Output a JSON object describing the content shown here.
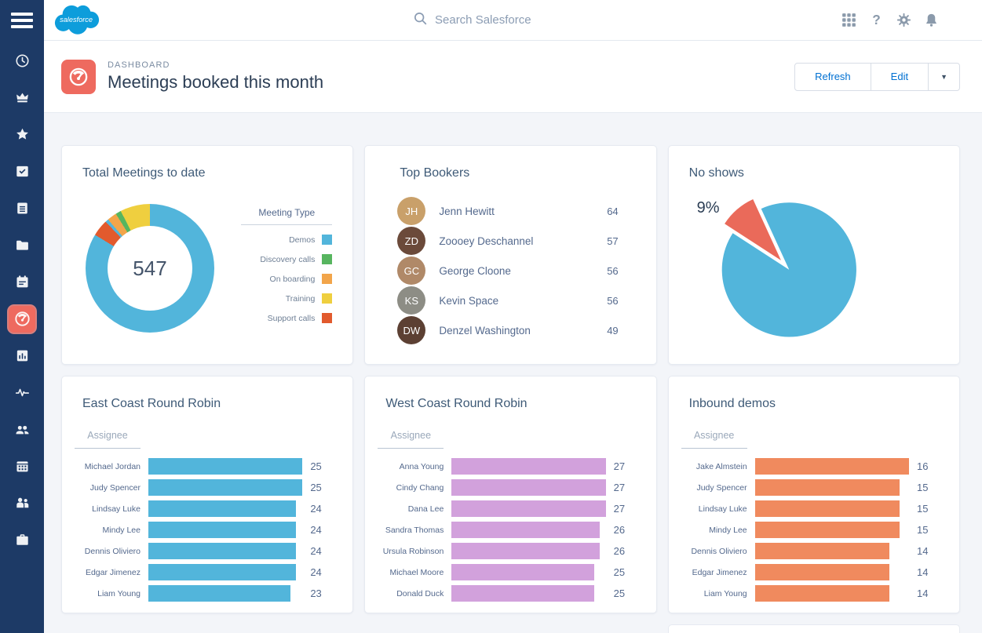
{
  "app": {
    "logo_label": "salesforce"
  },
  "colors": {
    "sidebar_bg": "#1D3A66",
    "accent_blue": "#0070D2",
    "tile_red": "#EE6A5F",
    "chart_blue": "#52B5DB",
    "chart_green": "#57B55F",
    "chart_orange": "#F2A54A",
    "chart_yellow": "#EFCF3F",
    "chart_red": "#E25A2D",
    "pie_red": "#EA6A5A",
    "bar_purple": "#D2A1DC",
    "bar_orange": "#F08A5E"
  },
  "sidebar": {
    "items": [
      {
        "icon": "clock",
        "selected": false
      },
      {
        "icon": "crown",
        "selected": false
      },
      {
        "icon": "star",
        "selected": false
      },
      {
        "icon": "inbox-check",
        "selected": false
      },
      {
        "icon": "clipboard-list",
        "selected": false
      },
      {
        "icon": "folder",
        "selected": false
      },
      {
        "icon": "calendar-event",
        "selected": false
      },
      {
        "icon": "gauge",
        "selected": true
      },
      {
        "icon": "report-chart",
        "selected": false
      },
      {
        "icon": "pulse",
        "selected": false
      },
      {
        "icon": "users-group",
        "selected": false
      },
      {
        "icon": "calendar-grid",
        "selected": false
      },
      {
        "icon": "people-pair",
        "selected": false
      },
      {
        "icon": "briefcase",
        "selected": false
      }
    ]
  },
  "header": {
    "search_placeholder": "Search Salesforce",
    "icons": [
      "app-launcher",
      "help",
      "settings",
      "notifications"
    ]
  },
  "page_header": {
    "eyebrow": "DASHBOARD",
    "title": "Meetings booked this month",
    "refresh_label": "Refresh",
    "edit_label": "Edit"
  },
  "chart_data": [
    {
      "type": "donut",
      "title": "Total Meetings to date",
      "total": "547",
      "legend_title": "Meeting Type",
      "legend": [
        {
          "label": "Demos",
          "color": "#52B5DB"
        },
        {
          "label": "Discovery calls",
          "color": "#57B55F"
        },
        {
          "label": "On boarding",
          "color": "#F2A54A"
        },
        {
          "label": "Training",
          "color": "#EFCF3F"
        },
        {
          "label": "Support calls",
          "color": "#E25A2D"
        }
      ],
      "segments_clockwise_from_top": [
        {
          "label": "Demos",
          "pct": 83.7,
          "color": "#52B5DB"
        },
        {
          "label": "Support calls",
          "pct": 4.2,
          "color": "#E25A2D"
        },
        {
          "label": "Demos",
          "pct": 0.8,
          "color": "#52B5DB"
        },
        {
          "label": "On boarding",
          "pct": 2.4,
          "color": "#F2A54A"
        },
        {
          "label": "Discovery calls",
          "pct": 1.4,
          "color": "#57B55F"
        },
        {
          "label": "Training",
          "pct": 7.5,
          "color": "#EFCF3F"
        }
      ]
    },
    {
      "type": "list",
      "title": "Top Bookers",
      "rows": [
        {
          "name": "Jenn Hewitt",
          "value": 64,
          "initials": "JH",
          "avatar_color": "#C9A06A"
        },
        {
          "name": "Zoooey Deschannel",
          "value": 57,
          "initials": "ZD",
          "avatar_color": "#6B4A3A"
        },
        {
          "name": "George Cloone",
          "value": 56,
          "initials": "GC",
          "avatar_color": "#B08968"
        },
        {
          "name": "Kevin Space",
          "value": 56,
          "initials": "KS",
          "avatar_color": "#8D8D85"
        },
        {
          "name": "Denzel Washington",
          "value": 49,
          "initials": "DW",
          "avatar_color": "#5C4033"
        }
      ]
    },
    {
      "type": "pie",
      "title": "No shows",
      "callout": "9%",
      "start_angle_deg": 303,
      "slices": [
        {
          "label": "No shows",
          "pct": 9,
          "color": "#EA6A5A",
          "exploded": true
        },
        {
          "label": "",
          "pct": 91,
          "color": "#52B5DB",
          "exploded": false
        }
      ]
    },
    {
      "type": "bar",
      "title": "East Coast Round Robin",
      "col_header": "Assignee",
      "color": "#52B5DB",
      "xmax": 25,
      "rows": [
        [
          "Michael Jordan",
          25
        ],
        [
          "Judy Spencer",
          25
        ],
        [
          "Lindsay Luke",
          24
        ],
        [
          "Mindy Lee",
          24
        ],
        [
          "Dennis Oliviero",
          24
        ],
        [
          "Edgar Jimenez",
          24
        ],
        [
          "Liam Young",
          23
        ]
      ]
    },
    {
      "type": "bar",
      "title": "West Coast Round Robin",
      "col_header": "Assignee",
      "color": "#D2A1DC",
      "xmax": 27,
      "rows": [
        [
          "Anna Young",
          27
        ],
        [
          "Cindy Chang",
          27
        ],
        [
          "Dana Lee",
          27
        ],
        [
          "Sandra Thomas",
          26
        ],
        [
          "Ursula Robinson",
          26
        ],
        [
          "Michael Moore",
          25
        ],
        [
          "Donald Duck",
          25
        ]
      ]
    },
    {
      "type": "bar",
      "title": "Inbound demos",
      "col_header": "Assignee",
      "color": "#F08A5E",
      "xmax": 16,
      "rows": [
        [
          "Jake Almstein",
          16
        ],
        [
          "Judy Spencer",
          15
        ],
        [
          "Lindsay Luke",
          15
        ],
        [
          "Mindy Lee",
          15
        ],
        [
          "Dennis Oliviero",
          14
        ],
        [
          "Edgar Jimenez",
          14
        ],
        [
          "Liam Young",
          14
        ]
      ]
    }
  ]
}
